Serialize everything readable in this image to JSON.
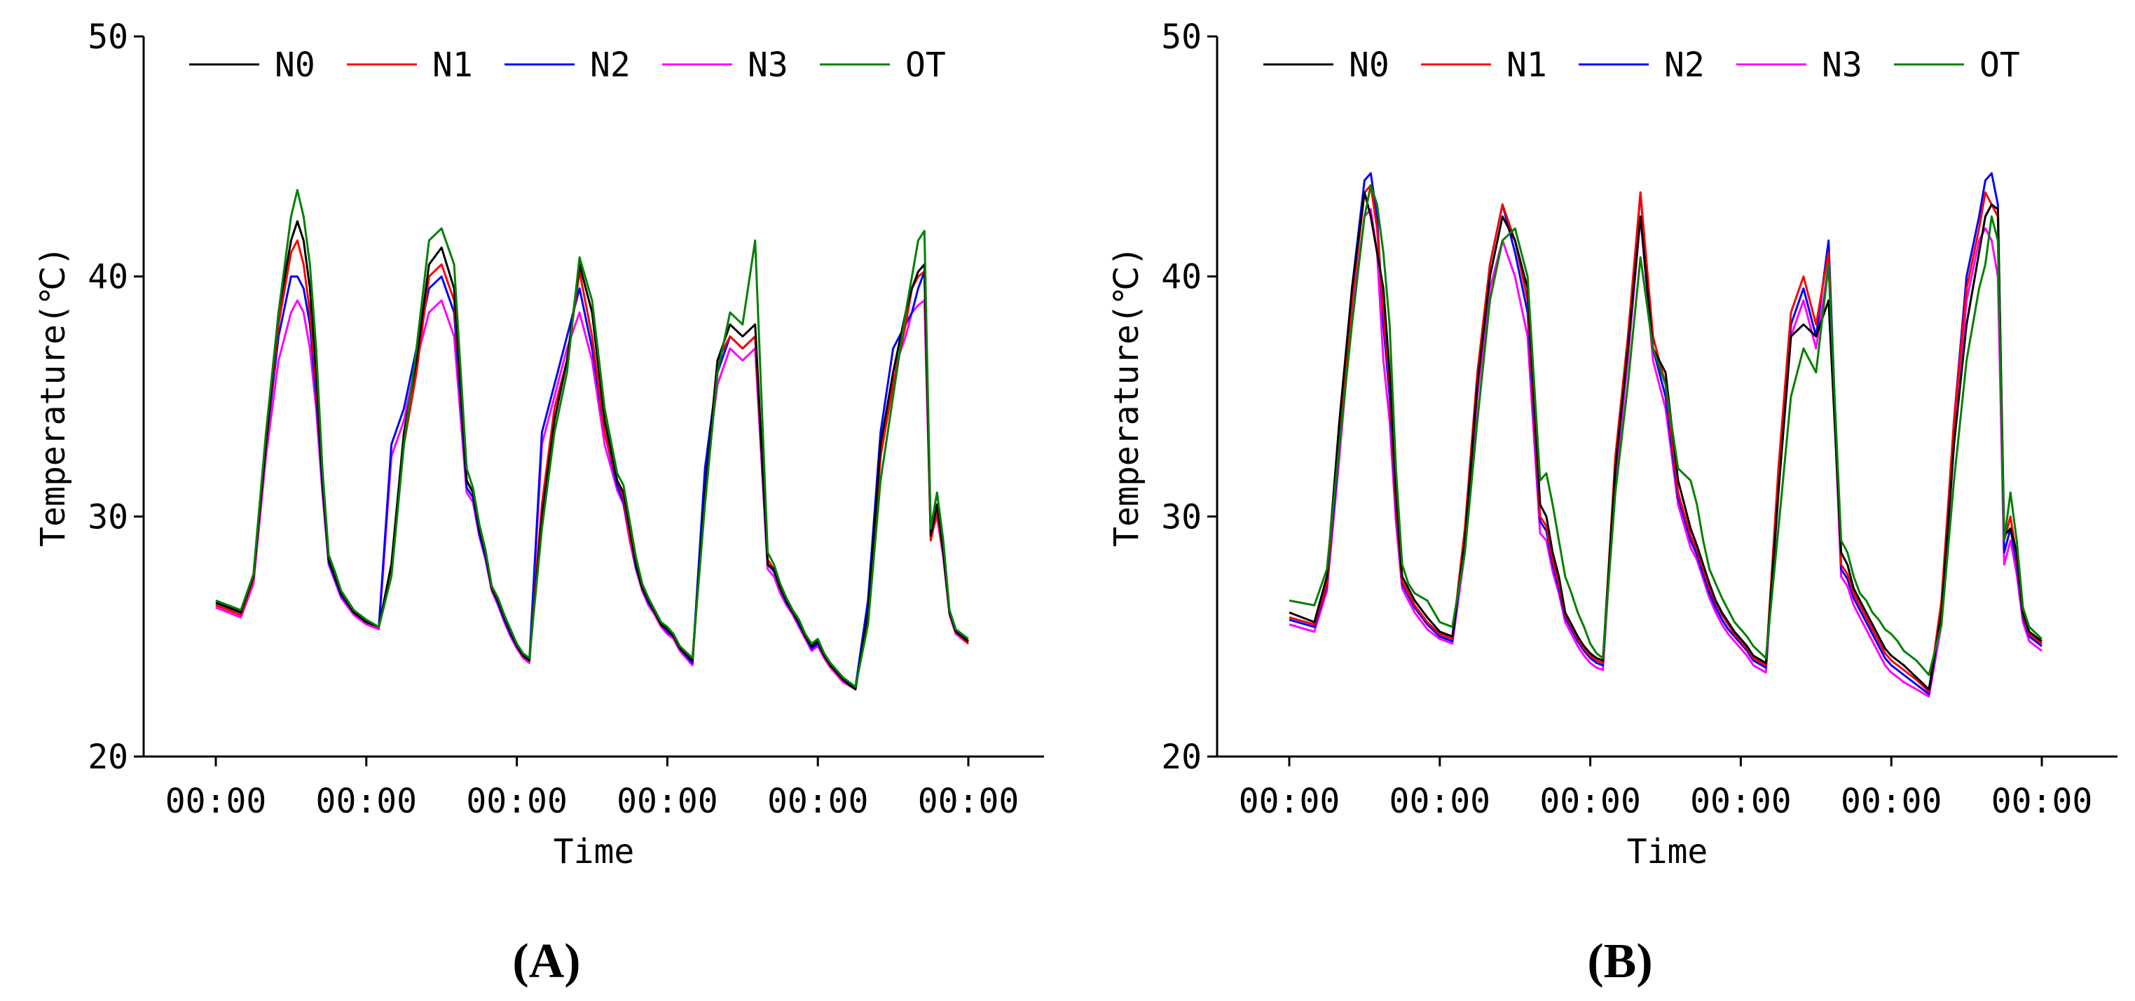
{
  "colors": {
    "N0": "#000000",
    "N1": "#ff0000",
    "N2": "#0000ff",
    "N3": "#ff00ff",
    "OT": "#008000",
    "axis": "#000000"
  },
  "chart_data": [
    {
      "type": "line",
      "panel_label": "(A)",
      "xlabel": "Time",
      "ylabel": "Temperature(℃)",
      "ylim": [
        20,
        50
      ],
      "y_ticks": [
        "20",
        "30",
        "40",
        "50"
      ],
      "x_tick_labels": [
        "00:00",
        "00:00",
        "00:00",
        "00:00",
        "00:00",
        "00:00"
      ],
      "xlim": [
        0,
        120
      ],
      "legend": [
        "N0",
        "N1",
        "N2",
        "N3",
        "OT"
      ],
      "legend_position": "top",
      "x": [
        0,
        4,
        6,
        8,
        10,
        12,
        13,
        14,
        15,
        16,
        17,
        18,
        19,
        20,
        22,
        24,
        26,
        28,
        30,
        32,
        34,
        36,
        38,
        40,
        41,
        42,
        43,
        44,
        45,
        46,
        47,
        48,
        49,
        50,
        52,
        54,
        56,
        58,
        60,
        62,
        64,
        65,
        66,
        67,
        68,
        69,
        70,
        71,
        72,
        73,
        74,
        76,
        78,
        80,
        82,
        84,
        86,
        88,
        89,
        90,
        91,
        92,
        93,
        94,
        95,
        96,
        97,
        98,
        100,
        102,
        104,
        106,
        108,
        110,
        111,
        112,
        113,
        114,
        115,
        116,
        117,
        118,
        120
      ],
      "series": [
        {
          "name": "N0",
          "values": [
            26.4,
            26.0,
            27.5,
            33,
            38.5,
            41.5,
            42.3,
            41.5,
            39.5,
            36,
            31.5,
            28.2,
            27.5,
            26.8,
            26.0,
            25.6,
            25.4,
            28,
            33.5,
            36.5,
            40.5,
            41.2,
            39.5,
            31.5,
            31.0,
            29.5,
            28.5,
            27,
            26.5,
            25.8,
            25.2,
            24.6,
            24.2,
            24.0,
            30,
            34,
            36.5,
            40.5,
            38.5,
            34,
            31.5,
            31.0,
            29.5,
            28,
            27,
            26.5,
            26,
            25.5,
            25.3,
            25,
            24.5,
            24.0,
            31,
            36.5,
            38,
            37.5,
            38,
            28,
            27.8,
            27,
            26.5,
            26,
            25.6,
            25,
            24.6,
            24.8,
            24.2,
            23.8,
            23.2,
            22.8,
            26,
            33,
            36,
            38.5,
            39.5,
            40.2,
            40.5,
            29.2,
            30.5,
            28.5,
            26,
            25.2,
            24.8
          ]
        },
        {
          "name": "N1",
          "values": [
            26.3,
            25.9,
            27.4,
            33,
            38.0,
            41.0,
            41.5,
            40.5,
            38.5,
            35.5,
            31.5,
            28.2,
            27.5,
            26.8,
            26.0,
            25.6,
            25.4,
            28,
            33.0,
            36,
            40,
            40.5,
            39,
            31.5,
            31.0,
            29.5,
            28.5,
            27,
            26.5,
            25.8,
            25.2,
            24.6,
            24.2,
            24.0,
            30.5,
            34.5,
            36.5,
            40.2,
            37.5,
            33.5,
            31.5,
            30.8,
            29.2,
            28,
            27,
            26.5,
            26,
            25.5,
            25.3,
            25,
            24.5,
            24.0,
            31,
            36.5,
            37.5,
            37,
            37.5,
            28.2,
            27.8,
            27,
            26.5,
            26,
            25.6,
            25,
            24.6,
            24.8,
            24.2,
            23.8,
            23.2,
            22.8,
            26,
            32.5,
            35.5,
            38,
            39.5,
            40,
            40.2,
            29.0,
            30.2,
            28.5,
            26,
            25.2,
            24.7
          ]
        },
        {
          "name": "N2",
          "values": [
            26.4,
            26.1,
            27.5,
            33,
            37.5,
            40.0,
            40.0,
            39.5,
            38,
            35,
            31.3,
            28.1,
            27.4,
            26.7,
            26.0,
            25.6,
            25.4,
            33,
            34.5,
            37,
            39.5,
            40,
            38.5,
            31.2,
            30.8,
            29.3,
            28.3,
            27,
            26.4,
            25.7,
            25.1,
            24.6,
            24.2,
            24.0,
            33.5,
            35.5,
            37.5,
            39.5,
            37,
            33.5,
            31.3,
            30.6,
            29.2,
            27.9,
            27,
            26.4,
            26,
            25.5,
            25.2,
            25,
            24.5,
            23.9,
            32,
            36,
            37.5,
            37,
            37.5,
            28,
            27.7,
            27,
            26.4,
            26,
            25.5,
            25,
            24.5,
            24.7,
            24.2,
            23.8,
            23.2,
            22.9,
            26.5,
            33.5,
            37,
            38,
            38.5,
            39.5,
            40.2,
            29.5,
            30.3,
            28.5,
            26,
            25.2,
            24.8
          ]
        },
        {
          "name": "N3",
          "values": [
            26.2,
            25.8,
            27.2,
            32.5,
            36.5,
            38.5,
            39,
            38.5,
            37,
            34.5,
            31,
            28,
            27.3,
            26.6,
            25.9,
            25.5,
            25.3,
            32.5,
            34,
            36.5,
            38.5,
            39,
            37.5,
            31,
            30.6,
            29.2,
            28.2,
            26.9,
            26.3,
            25.6,
            25,
            24.5,
            24.1,
            23.9,
            33,
            35,
            37,
            38.5,
            36.5,
            33,
            31.1,
            30.5,
            29,
            27.8,
            26.9,
            26.3,
            25.9,
            25.4,
            25.1,
            24.9,
            24.4,
            23.8,
            31.5,
            35.5,
            37,
            36.5,
            37,
            27.8,
            27.5,
            26.8,
            26.3,
            25.9,
            25.4,
            24.9,
            24.4,
            24.6,
            24.1,
            23.7,
            23.1,
            22.8,
            26,
            32.5,
            36,
            37.5,
            38.5,
            38.8,
            39,
            29.2,
            30.0,
            28.3,
            25.9,
            25.1,
            24.7
          ]
        },
        {
          "name": "OT",
          "values": [
            26.5,
            26.1,
            27.6,
            33.5,
            38.5,
            42.5,
            43.6,
            42.5,
            40.5,
            37,
            32,
            28.4,
            27.7,
            26.9,
            26.1,
            25.7,
            25.4,
            27.5,
            33,
            37,
            41.5,
            42,
            40.5,
            32,
            31.2,
            29.7,
            28.6,
            27.1,
            26.6,
            25.9,
            25.3,
            24.7,
            24.3,
            24.1,
            29.5,
            33.5,
            36,
            40.8,
            39,
            34.5,
            31.8,
            31.3,
            29.8,
            28.3,
            27.2,
            26.6,
            26.1,
            25.6,
            25.4,
            25.1,
            24.6,
            24.1,
            30.5,
            36,
            38.5,
            38,
            41.5,
            28.5,
            28.0,
            27.2,
            26.6,
            26.1,
            25.7,
            25.1,
            24.7,
            24.9,
            24.3,
            23.9,
            23.3,
            22.9,
            25.5,
            31.5,
            35,
            38.5,
            40,
            41.5,
            41.9,
            29.5,
            31.0,
            29,
            26.1,
            25.3,
            24.9
          ]
        }
      ]
    },
    {
      "type": "line",
      "panel_label": "(B)",
      "xlabel": "Time",
      "ylabel": "Temperature(℃)",
      "ylim": [
        20,
        50
      ],
      "y_ticks": [
        "20",
        "30",
        "40",
        "50"
      ],
      "x_tick_labels": [
        "00:00",
        "00:00",
        "00:00",
        "00:00",
        "00:00",
        "00:00"
      ],
      "xlim": [
        0,
        120
      ],
      "legend": [
        "N0",
        "N1",
        "N2",
        "N3",
        "OT"
      ],
      "legend_position": "top",
      "x": [
        0,
        4,
        6,
        8,
        10,
        12,
        13,
        14,
        15,
        16,
        17,
        18,
        19,
        20,
        22,
        24,
        26,
        28,
        30,
        32,
        34,
        36,
        38,
        40,
        41,
        42,
        43,
        44,
        45,
        46,
        47,
        48,
        49,
        50,
        52,
        54,
        56,
        58,
        60,
        62,
        64,
        65,
        66,
        67,
        68,
        69,
        70,
        71,
        72,
        73,
        74,
        76,
        78,
        80,
        82,
        84,
        86,
        88,
        89,
        90,
        91,
        92,
        93,
        94,
        95,
        96,
        97,
        98,
        100,
        102,
        104,
        106,
        108,
        110,
        111,
        112,
        113,
        114,
        115,
        116,
        117,
        118,
        120
      ],
      "series": [
        {
          "name": "N0",
          "values": [
            26.0,
            25.6,
            27.5,
            34,
            39.5,
            43.5,
            42.5,
            41,
            39.5,
            36,
            31,
            27.5,
            27,
            26.5,
            25.8,
            25.2,
            25.0,
            29,
            35.5,
            40,
            42.5,
            41.5,
            39.5,
            30.5,
            30.0,
            28.5,
            27.5,
            26,
            25.5,
            25.0,
            24.6,
            24.3,
            24.1,
            24.0,
            32,
            37,
            42.5,
            37,
            36,
            31.5,
            29.5,
            28.8,
            28,
            27.2,
            26.5,
            26,
            25.6,
            25.2,
            24.9,
            24.6,
            24.2,
            23.9,
            31,
            37.5,
            38,
            37.5,
            39,
            28.5,
            28.0,
            27,
            26.5,
            26,
            25.5,
            25,
            24.5,
            24.2,
            24.0,
            23.8,
            23.3,
            22.8,
            26,
            33,
            38,
            41,
            42.5,
            43,
            42.8,
            29.2,
            29.5,
            28.5,
            26,
            25.2,
            24.8
          ]
        },
        {
          "name": "N1",
          "values": [
            25.8,
            25.5,
            27.2,
            33.5,
            39,
            43.5,
            43.8,
            42,
            38.5,
            35.5,
            30.5,
            27.3,
            26.8,
            26.3,
            25.6,
            25.1,
            24.9,
            29.5,
            36,
            40.5,
            43,
            41.5,
            39,
            30.0,
            29.6,
            28.2,
            27.2,
            25.9,
            25.4,
            24.9,
            24.5,
            24.2,
            24.0,
            23.9,
            32.5,
            37.5,
            43.5,
            37.5,
            35.5,
            31,
            29.2,
            28.6,
            27.8,
            27,
            26.4,
            25.9,
            25.5,
            25.1,
            24.8,
            24.5,
            24.1,
            23.8,
            32,
            38.5,
            40,
            38,
            41,
            28,
            27.6,
            26.8,
            26.3,
            25.8,
            25.3,
            24.8,
            24.3,
            24.0,
            23.8,
            23.6,
            23.2,
            22.7,
            26.5,
            34,
            39.5,
            42,
            43.5,
            43,
            42.5,
            29.0,
            30.0,
            28.3,
            25.9,
            25.1,
            24.7
          ]
        },
        {
          "name": "N2",
          "values": [
            25.7,
            25.4,
            27.1,
            33,
            39.5,
            44,
            44.3,
            42.5,
            38,
            35,
            30.3,
            27.2,
            26.7,
            26.2,
            25.5,
            25.0,
            24.8,
            29,
            35.5,
            40.5,
            43,
            41,
            38.5,
            29.8,
            29.4,
            28,
            27,
            25.8,
            25.3,
            24.8,
            24.4,
            24.1,
            23.9,
            23.8,
            32,
            37,
            43.5,
            37,
            35,
            30.8,
            29,
            28.4,
            27.6,
            26.8,
            26.2,
            25.7,
            25.3,
            25,
            24.7,
            24.4,
            24.0,
            23.7,
            31.5,
            38,
            39.5,
            37.5,
            41.5,
            27.8,
            27.4,
            26.6,
            26.1,
            25.6,
            25.1,
            24.6,
            24.1,
            23.8,
            23.6,
            23.4,
            23.0,
            22.6,
            26,
            34,
            40,
            42.5,
            44,
            44.3,
            43,
            28.5,
            29.5,
            28,
            25.8,
            25,
            24.6
          ]
        },
        {
          "name": "N3",
          "values": [
            25.5,
            25.2,
            26.9,
            32.5,
            38.5,
            42.5,
            42.8,
            41,
            36.5,
            34,
            29.8,
            27,
            26.5,
            26,
            25.3,
            24.9,
            24.7,
            28.5,
            35,
            39.5,
            41.5,
            40,
            37.5,
            29.3,
            29.0,
            27.7,
            26.8,
            25.6,
            25.1,
            24.6,
            24.2,
            23.9,
            23.7,
            23.6,
            31.5,
            36.5,
            42.5,
            36.5,
            34.5,
            30.5,
            28.7,
            28.2,
            27.4,
            26.6,
            26,
            25.5,
            25.1,
            24.8,
            24.5,
            24.2,
            23.8,
            23.5,
            31,
            37.5,
            39,
            37,
            40.5,
            27.5,
            27.1,
            26.3,
            25.8,
            25.3,
            24.8,
            24.3,
            23.8,
            23.5,
            23.3,
            23.1,
            22.8,
            22.5,
            25.5,
            33,
            39,
            41.5,
            42,
            41.5,
            40,
            28.0,
            29.0,
            27.6,
            25.6,
            24.8,
            24.4
          ]
        },
        {
          "name": "OT",
          "values": [
            26.5,
            26.3,
            27.8,
            33,
            38,
            42.5,
            43.8,
            43,
            41,
            38,
            32,
            28,
            27.2,
            26.8,
            26.5,
            25.6,
            25.4,
            28.5,
            34,
            39,
            41.5,
            42,
            40,
            31.5,
            31.8,
            30.5,
            29,
            27.5,
            26.8,
            26.0,
            25.4,
            24.7,
            24.3,
            24.1,
            31,
            35.5,
            40.8,
            37,
            35.5,
            32,
            31.5,
            30.5,
            29,
            27.8,
            27.2,
            26.6,
            26.1,
            25.6,
            25.3,
            25.0,
            24.6,
            24.1,
            29.5,
            35,
            37,
            36,
            40.5,
            29,
            28.5,
            27.5,
            26.8,
            26.5,
            26,
            25.7,
            25.3,
            25.1,
            24.8,
            24.4,
            24.0,
            23.4,
            25.5,
            31.5,
            36.5,
            39.5,
            40.5,
            42.5,
            41.5,
            29.0,
            31.0,
            29.0,
            26.2,
            25.4,
            24.9
          ]
        }
      ]
    }
  ]
}
